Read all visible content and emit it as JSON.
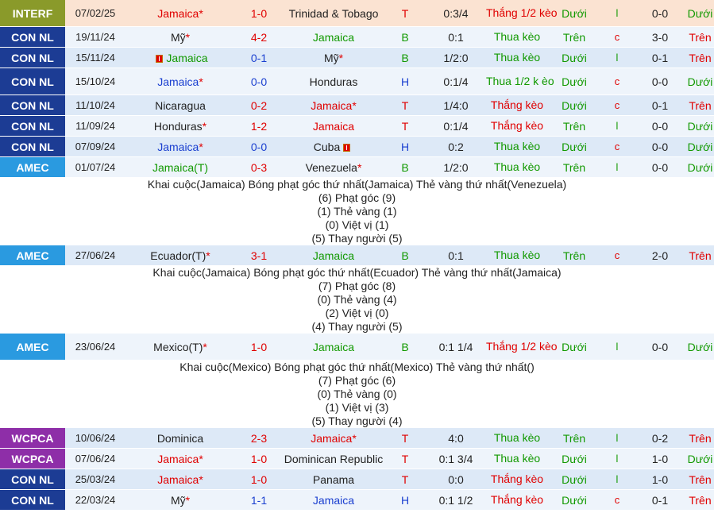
{
  "colors": {
    "INTERF": "#8a9a2a",
    "CON NL": "#1c3c94",
    "AMEC": "#2a9ae0",
    "WCPCA": "#8e2ea8"
  },
  "matches": [
    {
      "league": "INTERF",
      "date": "07/02/25",
      "home": "Jamaica",
      "home_star": "*",
      "home_flag": false,
      "home_color": "red",
      "score": "1-0",
      "score_color": "red",
      "away": "Trinidad & Tobago",
      "away_star": "",
      "away_flag": false,
      "away_color": "dark",
      "loc": "T",
      "loc_color": "red",
      "hcp": "0:3/4",
      "res": "Thắng 1/2 kèo",
      "res_color": "red",
      "ou": "Dưới",
      "oe": "l",
      "ht": "0-0",
      "ou2": "Dưới",
      "ou2_color": "green",
      "style": "first",
      "height": 34
    },
    {
      "league": "CON NL",
      "date": "19/11/24",
      "home": "Mỹ",
      "home_star": "*",
      "home_flag": false,
      "home_color": "dark",
      "score": "4-2",
      "score_color": "red",
      "away": "Jamaica",
      "away_star": "",
      "away_flag": false,
      "away_color": "green",
      "loc": "B",
      "loc_color": "green",
      "hcp": "0:1",
      "res": "Thua kèo",
      "res_color": "green",
      "ou": "Trên",
      "oe": "c",
      "ht": "3-0",
      "ou2": "Trên",
      "ou2_color": "red",
      "style": "b",
      "height": 26
    },
    {
      "league": "CON NL",
      "date": "15/11/24",
      "home": "Jamaica",
      "home_star": "",
      "home_flag": true,
      "home_color": "green",
      "score": "0-1",
      "score_color": "blue",
      "away": "Mỹ",
      "away_star": "*",
      "away_flag": false,
      "away_color": "dark",
      "loc": "B",
      "loc_color": "green",
      "hcp": "1/2:0",
      "res": "Thua kèo",
      "res_color": "green",
      "ou": "Dưới",
      "oe": "l",
      "ht": "0-1",
      "ou2": "Trên",
      "ou2_color": "red",
      "style": "a",
      "height": 26
    },
    {
      "league": "CON NL",
      "date": "15/10/24",
      "home": "Jamaica",
      "home_star": "*",
      "home_flag": false,
      "home_color": "blue",
      "score": "0-0",
      "score_color": "blue",
      "away": "Honduras",
      "away_star": "",
      "away_flag": false,
      "away_color": "dark",
      "loc": "H",
      "loc_color": "blue",
      "hcp": "0:1/4",
      "res": "Thua 1/2 k èo",
      "res_color": "green",
      "ou": "Dưới",
      "oe": "c",
      "ht": "0-0",
      "ou2": "Dưới",
      "ou2_color": "green",
      "style": "b",
      "height": 34
    },
    {
      "league": "CON NL",
      "date": "11/10/24",
      "home": "Nicaragua",
      "home_star": "",
      "home_flag": false,
      "home_color": "dark",
      "score": "0-2",
      "score_color": "red",
      "away": "Jamaica",
      "away_star": "*",
      "away_flag": false,
      "away_color": "red",
      "loc": "T",
      "loc_color": "red",
      "hcp": "1/4:0",
      "res": "Thắng kèo",
      "res_color": "red",
      "ou": "Dưới",
      "oe": "c",
      "ht": "0-1",
      "ou2": "Trên",
      "ou2_color": "red",
      "style": "a",
      "height": 26
    },
    {
      "league": "CON NL",
      "date": "11/09/24",
      "home": "Honduras",
      "home_star": "*",
      "home_flag": false,
      "home_color": "dark",
      "score": "1-2",
      "score_color": "red",
      "away": "Jamaica",
      "away_star": "",
      "away_flag": false,
      "away_color": "red",
      "loc": "T",
      "loc_color": "red",
      "hcp": "0:1/4",
      "res": "Thắng kèo",
      "res_color": "red",
      "ou": "Trên",
      "oe": "l",
      "ht": "0-0",
      "ou2": "Dưới",
      "ou2_color": "green",
      "style": "b",
      "height": 26
    },
    {
      "league": "CON NL",
      "date": "07/09/24",
      "home": "Jamaica",
      "home_star": "*",
      "home_flag": false,
      "home_color": "blue",
      "score": "0-0",
      "score_color": "blue",
      "away": "Cuba",
      "away_star": "",
      "away_flag": true,
      "away_color": "dark",
      "loc": "H",
      "loc_color": "blue",
      "hcp": "0:2",
      "res": "Thua kèo",
      "res_color": "green",
      "ou": "Dưới",
      "oe": "c",
      "ht": "0-0",
      "ou2": "Dưới",
      "ou2_color": "green",
      "style": "a",
      "height": 26
    },
    {
      "league": "AMEC",
      "date": "01/07/24",
      "home": "Jamaica(T)",
      "home_star": "",
      "home_flag": false,
      "home_color": "green",
      "score": "0-3",
      "score_color": "red",
      "away": "Venezuela",
      "away_star": "*",
      "away_flag": false,
      "away_color": "dark",
      "loc": "B",
      "loc_color": "green",
      "hcp": "1/2:0",
      "res": "Thua kèo",
      "res_color": "green",
      "ou": "Trên",
      "oe": "l",
      "ht": "0-0",
      "ou2": "Dưới",
      "ou2_color": "green",
      "style": "b",
      "height": 26,
      "details": [
        "Khai cuộc(Jamaica)  Bóng phạt góc thứ nhất(Jamaica)  Thẻ vàng thứ nhất(Venezuela)",
        "(6) Phạt góc (9)",
        "(1) Thẻ vàng (1)",
        "(0) Việt vị (1)",
        "(5) Thay người (5)"
      ]
    },
    {
      "league": "AMEC",
      "date": "27/06/24",
      "home": "Ecuador(T)",
      "home_star": "*",
      "home_flag": false,
      "home_color": "dark",
      "score": "3-1",
      "score_color": "red",
      "away": "Jamaica",
      "away_star": "",
      "away_flag": false,
      "away_color": "green",
      "loc": "B",
      "loc_color": "green",
      "hcp": "0:1",
      "res": "Thua kèo",
      "res_color": "green",
      "ou": "Trên",
      "oe": "c",
      "ht": "2-0",
      "ou2": "Trên",
      "ou2_color": "red",
      "style": "a",
      "height": 26,
      "details": [
        "Khai cuộc(Jamaica)  Bóng phạt góc thứ nhất(Ecuador)  Thẻ vàng thứ nhất(Jamaica)",
        "(7) Phạt góc (8)",
        "(0) Thẻ vàng (4)",
        "(2) Việt vị (0)",
        "(4) Thay người (5)"
      ]
    },
    {
      "league": "AMEC",
      "date": "23/06/24",
      "home": "Mexico(T)",
      "home_star": "*",
      "home_flag": false,
      "home_color": "dark",
      "score": "1-0",
      "score_color": "red",
      "away": "Jamaica",
      "away_star": "",
      "away_flag": false,
      "away_color": "green",
      "loc": "B",
      "loc_color": "green",
      "hcp": "0:1 1/4",
      "res": "Thắng 1/2 kèo",
      "res_color": "red",
      "ou": "Dưới",
      "oe": "l",
      "ht": "0-0",
      "ou2": "Dưới",
      "ou2_color": "green",
      "style": "b",
      "height": 34,
      "details": [
        "Khai cuộc(Mexico)  Bóng phạt góc thứ nhất(Mexico)  Thẻ vàng thứ nhất()",
        "(7) Phạt góc (6)",
        "(0) Thẻ vàng (0)",
        "(1) Việt vị (3)",
        "(5) Thay người (4)"
      ]
    },
    {
      "league": "WCPCA",
      "date": "10/06/24",
      "home": "Dominica",
      "home_star": "",
      "home_flag": false,
      "home_color": "dark",
      "score": "2-3",
      "score_color": "red",
      "away": "Jamaica",
      "away_star": "*",
      "away_flag": false,
      "away_color": "red",
      "loc": "T",
      "loc_color": "red",
      "hcp": "4:0",
      "res": "Thua kèo",
      "res_color": "green",
      "ou": "Trên",
      "oe": "l",
      "ht": "0-2",
      "ou2": "Trên",
      "ou2_color": "red",
      "style": "a",
      "height": 26
    },
    {
      "league": "WCPCA",
      "date": "07/06/24",
      "home": "Jamaica",
      "home_star": "*",
      "home_flag": false,
      "home_color": "red",
      "score": "1-0",
      "score_color": "red",
      "away": "Dominican Republic",
      "away_star": "",
      "away_flag": false,
      "away_color": "dark",
      "loc": "T",
      "loc_color": "red",
      "hcp": "0:1 3/4",
      "res": "Thua kèo",
      "res_color": "green",
      "ou": "Dưới",
      "oe": "l",
      "ht": "1-0",
      "ou2": "Dưới",
      "ou2_color": "green",
      "style": "b",
      "height": 26
    },
    {
      "league": "CON NL",
      "date": "25/03/24",
      "home": "Jamaica",
      "home_star": "*",
      "home_flag": false,
      "home_color": "red",
      "score": "1-0",
      "score_color": "red",
      "away": "Panama",
      "away_star": "",
      "away_flag": false,
      "away_color": "dark",
      "loc": "T",
      "loc_color": "red",
      "hcp": "0:0",
      "res": "Thắng kèo",
      "res_color": "red",
      "ou": "Dưới",
      "oe": "l",
      "ht": "1-0",
      "ou2": "Trên",
      "ou2_color": "red",
      "style": "a",
      "height": 26
    },
    {
      "league": "CON NL",
      "date": "22/03/24",
      "home": "Mỹ",
      "home_star": "*",
      "home_flag": false,
      "home_color": "dark",
      "score": "1-1",
      "score_color": "blue",
      "away": "Jamaica",
      "away_star": "",
      "away_flag": false,
      "away_color": "blue",
      "loc": "H",
      "loc_color": "blue",
      "hcp": "0:1 1/2",
      "res": "Thắng kèo",
      "res_color": "red",
      "ou": "Dưới",
      "oe": "c",
      "ht": "0-1",
      "ou2": "Trên",
      "ou2_color": "red",
      "style": "b",
      "height": 26
    }
  ]
}
